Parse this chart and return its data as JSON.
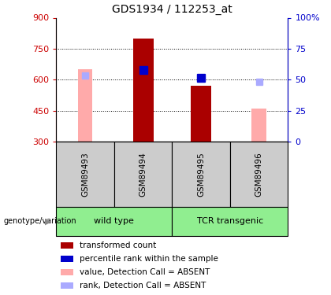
{
  "title": "GDS1934 / 112253_at",
  "samples": [
    "GSM89493",
    "GSM89494",
    "GSM89495",
    "GSM89496"
  ],
  "ylim_left": [
    300,
    900
  ],
  "ylim_right": [
    0,
    100
  ],
  "yticks_left": [
    300,
    450,
    600,
    750,
    900
  ],
  "yticks_right": [
    0,
    25,
    50,
    75,
    100
  ],
  "bar_bottom": 300,
  "transformed_count": [
    null,
    800,
    570,
    null
  ],
  "percentile_rank": [
    null,
    645,
    608,
    null
  ],
  "absent_value": [
    650,
    null,
    null,
    460
  ],
  "absent_rank": [
    620,
    null,
    null,
    588
  ],
  "color_transformed": "#aa0000",
  "color_percentile": "#0000cc",
  "color_absent_value": "#ffaaaa",
  "color_absent_rank": "#aaaaff",
  "color_left_axis": "#cc0000",
  "color_right_axis": "#0000cc",
  "bar_width": 0.35,
  "absent_bar_width": 0.25,
  "group_labels": [
    "wild type",
    "TCR transgenic"
  ],
  "group_color": "#90ee90",
  "legend_items": [
    {
      "color": "#aa0000",
      "label": "transformed count"
    },
    {
      "color": "#0000cc",
      "label": "percentile rank within the sample"
    },
    {
      "color": "#ffaaaa",
      "label": "value, Detection Call = ABSENT"
    },
    {
      "color": "#aaaaff",
      "label": "rank, Detection Call = ABSENT"
    }
  ],
  "group_label_prefix": "genotype/variation"
}
